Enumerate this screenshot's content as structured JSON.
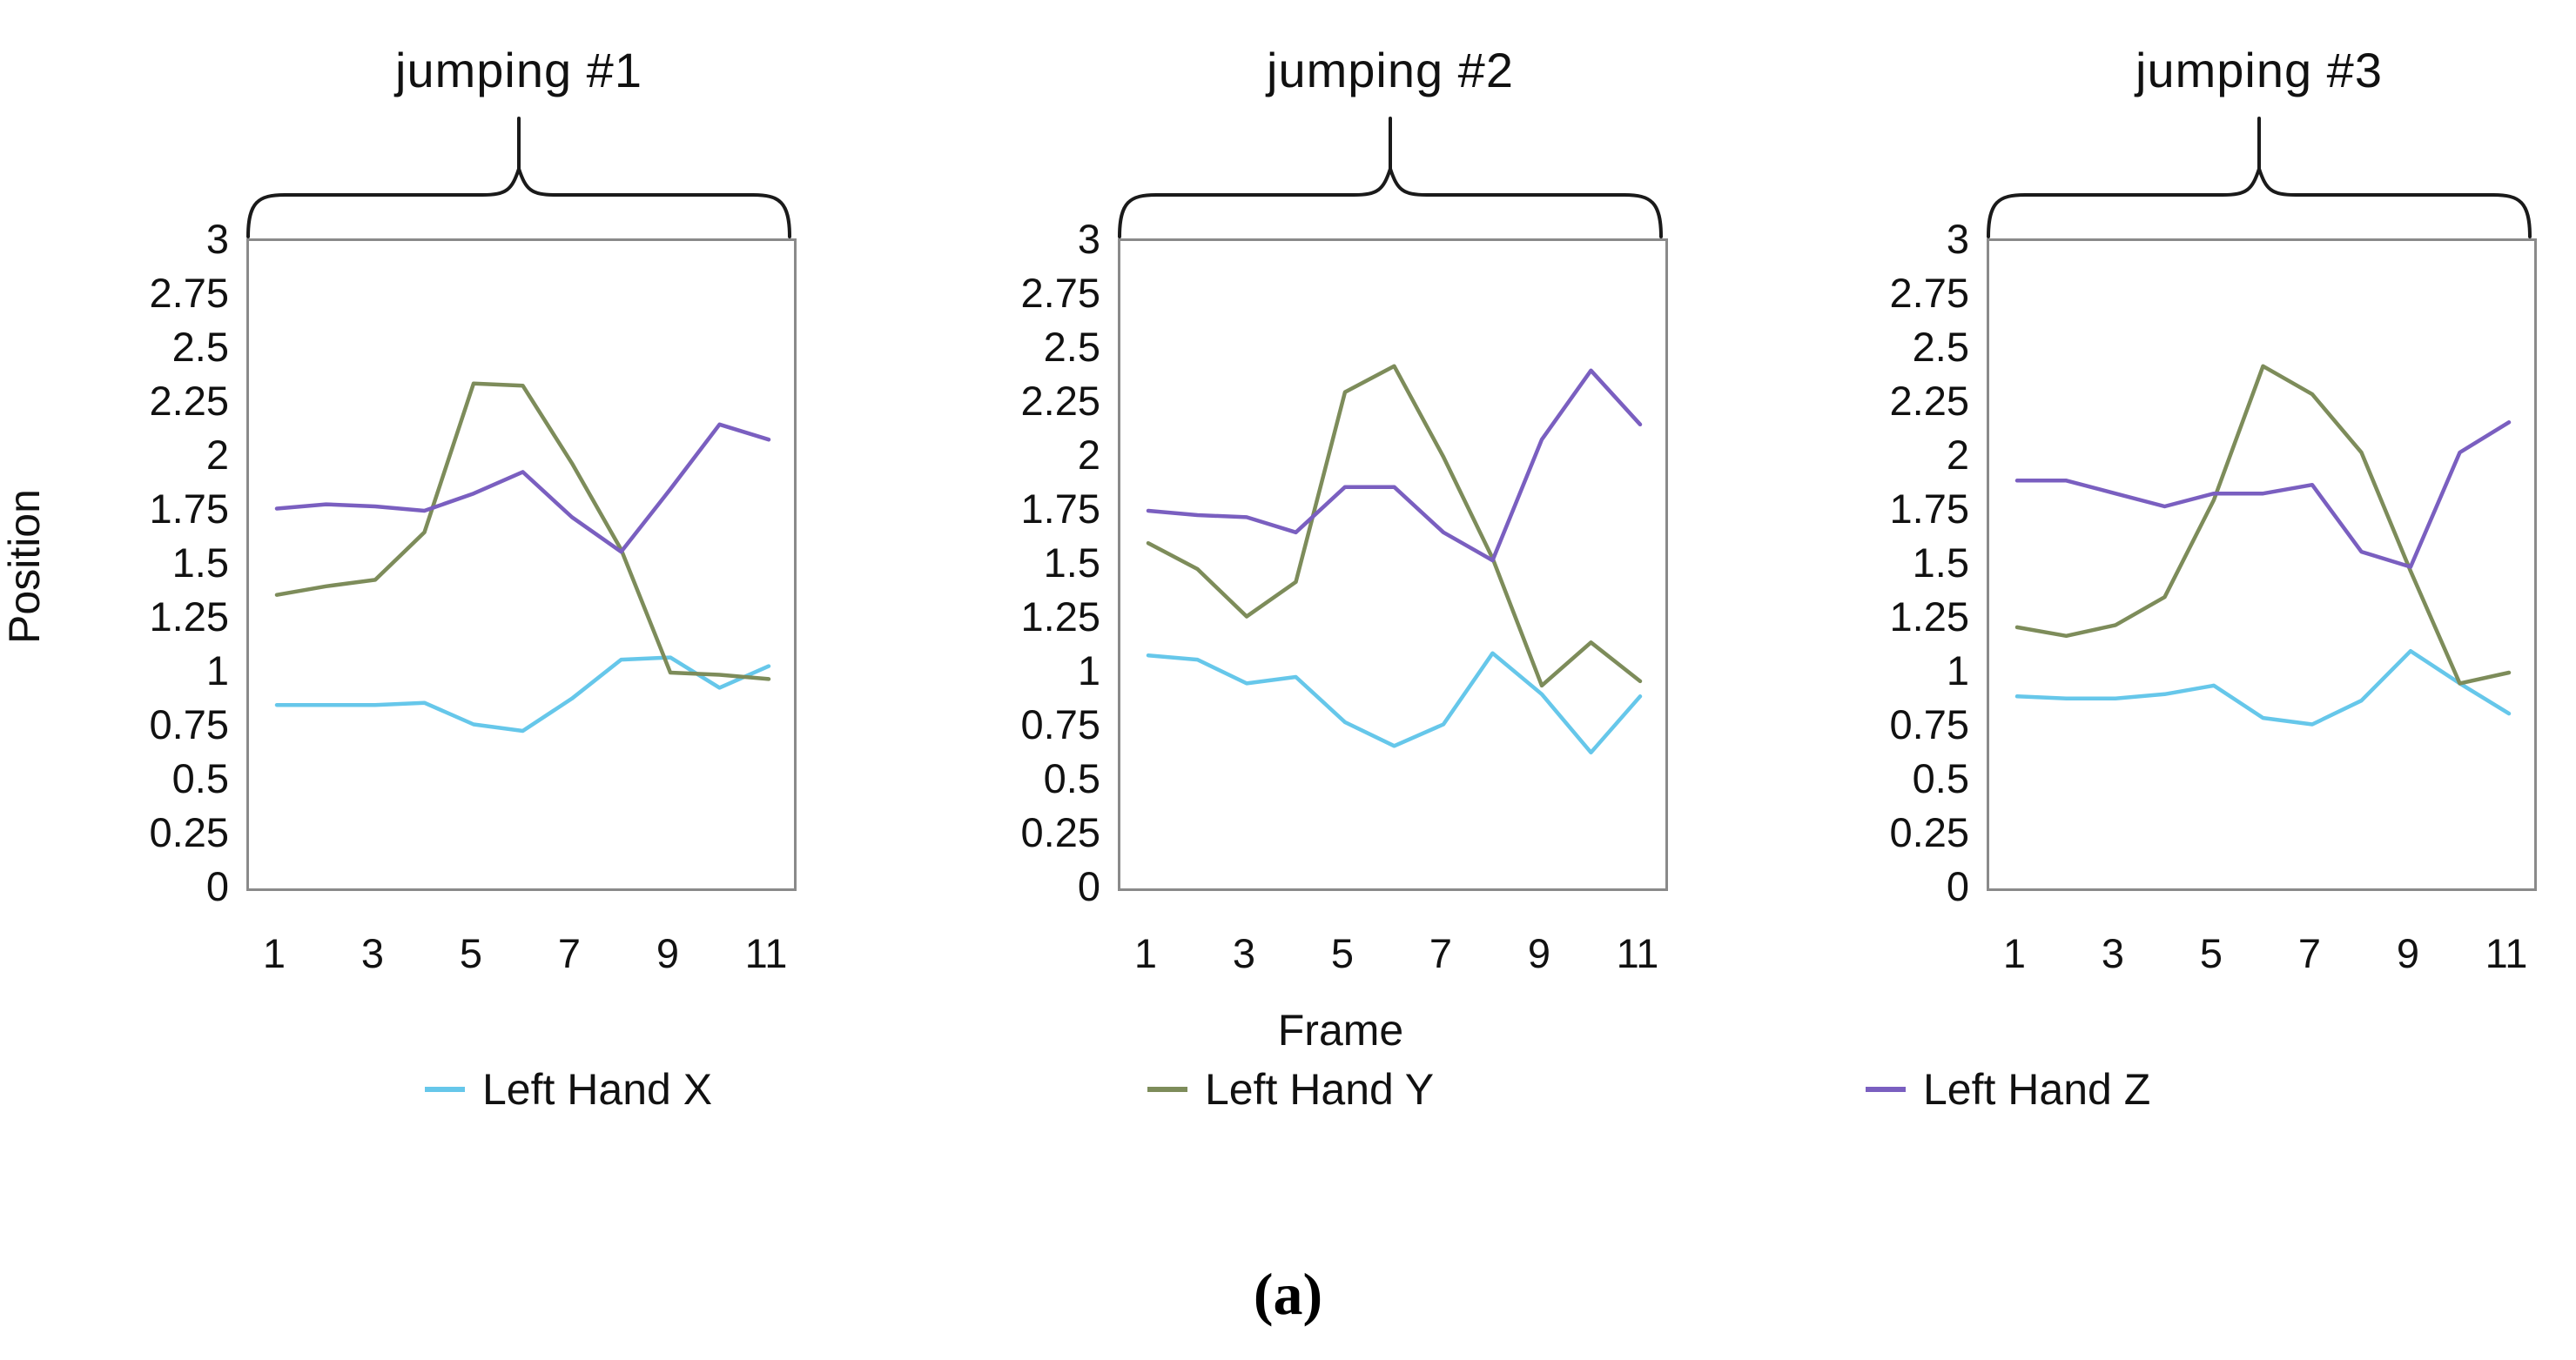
{
  "figure": {
    "y_axis_label": "Position",
    "x_axis_label": "Frame",
    "caption": "(a)",
    "y_ticks": [
      "3",
      "2.75",
      "2.5",
      "2.25",
      "2",
      "1.75",
      "1.5",
      "1.25",
      "1",
      "0.75",
      "0.5",
      "0.25",
      "0"
    ],
    "x_ticks": [
      "1",
      "3",
      "5",
      "7",
      "9",
      "11"
    ]
  },
  "colors": {
    "left_hand_x": "#66c7ea",
    "left_hand_y": "#7d8c5a",
    "left_hand_z": "#7a5fc0",
    "axis_box": "#8a8a8a",
    "brace": "#1a1a1a",
    "text": "#111111"
  },
  "legend": [
    {
      "label": "Left Hand X",
      "color": "#66c7ea"
    },
    {
      "label": "Left Hand Y",
      "color": "#7d8c5a"
    },
    {
      "label": "Left Hand Z",
      "color": "#7a5fc0"
    }
  ],
  "chart_data": [
    {
      "type": "line",
      "title": "jumping #1",
      "xlabel": "Frame",
      "ylabel": "Position",
      "x": [
        1,
        2,
        3,
        4,
        5,
        6,
        7,
        8,
        9,
        10,
        11
      ],
      "xlim": [
        1,
        11
      ],
      "ylim": [
        0,
        3
      ],
      "grid": false,
      "series": [
        {
          "name": "Left Hand X",
          "color": "#66c7ea",
          "values": [
            0.85,
            0.85,
            0.85,
            0.86,
            0.76,
            0.73,
            0.88,
            1.06,
            1.07,
            0.93,
            1.03
          ]
        },
        {
          "name": "Left Hand Y",
          "color": "#7d8c5a",
          "values": [
            1.36,
            1.4,
            1.43,
            1.65,
            2.34,
            2.33,
            1.97,
            1.57,
            1.0,
            0.99,
            0.97
          ]
        },
        {
          "name": "Left Hand Z",
          "color": "#7a5fc0",
          "values": [
            1.76,
            1.78,
            1.77,
            1.75,
            1.83,
            1.93,
            1.72,
            1.56,
            1.85,
            2.15,
            2.08
          ]
        }
      ]
    },
    {
      "type": "line",
      "title": "jumping #2",
      "xlabel": "Frame",
      "ylabel": "Position",
      "x": [
        1,
        2,
        3,
        4,
        5,
        6,
        7,
        8,
        9,
        10,
        11
      ],
      "xlim": [
        1,
        11
      ],
      "ylim": [
        0,
        3
      ],
      "grid": false,
      "series": [
        {
          "name": "Left Hand X",
          "color": "#66c7ea",
          "values": [
            1.08,
            1.06,
            0.95,
            0.98,
            0.77,
            0.66,
            0.76,
            1.09,
            0.9,
            0.63,
            0.89
          ]
        },
        {
          "name": "Left Hand Y",
          "color": "#7d8c5a",
          "values": [
            1.6,
            1.48,
            1.26,
            1.42,
            2.3,
            2.42,
            2.0,
            1.53,
            0.94,
            1.14,
            0.96
          ]
        },
        {
          "name": "Left Hand Z",
          "color": "#7a5fc0",
          "values": [
            1.75,
            1.73,
            1.72,
            1.65,
            1.86,
            1.86,
            1.65,
            1.52,
            2.08,
            2.4,
            2.15
          ]
        }
      ]
    },
    {
      "type": "line",
      "title": "jumping #3",
      "xlabel": "Frame",
      "ylabel": "Position",
      "x": [
        1,
        2,
        3,
        4,
        5,
        6,
        7,
        8,
        9,
        10,
        11
      ],
      "xlim": [
        1,
        11
      ],
      "ylim": [
        0,
        3
      ],
      "grid": false,
      "series": [
        {
          "name": "Left Hand X",
          "color": "#66c7ea",
          "values": [
            0.89,
            0.88,
            0.88,
            0.9,
            0.94,
            0.79,
            0.76,
            0.87,
            1.1,
            0.95,
            0.81
          ]
        },
        {
          "name": "Left Hand Y",
          "color": "#7d8c5a",
          "values": [
            1.21,
            1.17,
            1.22,
            1.35,
            1.8,
            2.42,
            2.29,
            2.02,
            1.47,
            0.95,
            1.0
          ]
        },
        {
          "name": "Left Hand Z",
          "color": "#7a5fc0",
          "values": [
            1.89,
            1.89,
            1.83,
            1.77,
            1.83,
            1.83,
            1.87,
            1.56,
            1.49,
            2.02,
            2.16
          ]
        }
      ]
    }
  ]
}
